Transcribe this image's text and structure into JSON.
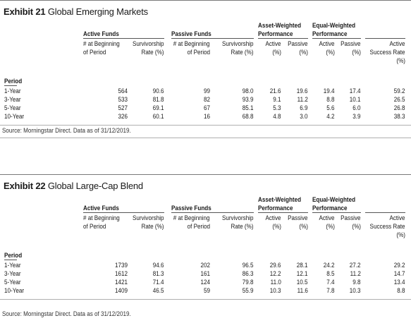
{
  "exhibits": [
    {
      "label": "Exhibit 21",
      "name": "Global Emerging Markets",
      "header": {
        "active_funds": "Active Funds",
        "passive_funds": "Passive Funds",
        "asset_weighted": "Asset-Weighted",
        "equal_weighted": "Equal-Weighted",
        "performance": "Performance",
        "active_count_1": "# at Beginning",
        "active_count_2": "of Period",
        "surv_1": "Survivorship",
        "surv_2": "Rate (%)",
        "passive_count_1": "# at Beginning",
        "passive_count_2": "of Period",
        "psurv_1": "Survivorship",
        "psurv_2": "Rate (%)",
        "aw_active": "Active",
        "aw_passive": "Passive",
        "aw_pct1": "(%)",
        "aw_pct2": "(%)",
        "ew_active": "Active",
        "ew_passive": "Passive",
        "ew_pct1": "(%)",
        "ew_pct2": "(%)",
        "succ_1": "Active",
        "succ_2": "Success Rate",
        "succ_3": "(%)"
      },
      "period_label": "Period",
      "rows": [
        {
          "period": "1-Year",
          "active_count": "564",
          "active_surv": "90.6",
          "passive_count": "99",
          "passive_surv": "98.0",
          "aw_active": "21.6",
          "aw_passive": "19.6",
          "ew_active": "19.4",
          "ew_passive": "17.4",
          "success": "59.2"
        },
        {
          "period": "3-Year",
          "active_count": "533",
          "active_surv": "81.8",
          "passive_count": "82",
          "passive_surv": "93.9",
          "aw_active": "9.1",
          "aw_passive": "11.2",
          "ew_active": "8.8",
          "ew_passive": "10.1",
          "success": "26.5"
        },
        {
          "period": "5-Year",
          "active_count": "527",
          "active_surv": "69.1",
          "passive_count": "67",
          "passive_surv": "85.1",
          "aw_active": "5.3",
          "aw_passive": "6.9",
          "ew_active": "5.6",
          "ew_passive": "6.0",
          "success": "26.8"
        },
        {
          "period": "10-Year",
          "active_count": "326",
          "active_surv": "60.1",
          "passive_count": "16",
          "passive_surv": "68.8",
          "aw_active": "4.8",
          "aw_passive": "3.0",
          "ew_active": "4.2",
          "ew_passive": "3.9",
          "success": "38.3"
        }
      ],
      "source": "Source: Morningstar Direct. Data as of 31/12/2019."
    },
    {
      "label": "Exhibit 22",
      "name": "Global Large-Cap Blend",
      "header": {
        "active_funds": "Active Funds",
        "passive_funds": "Passive Funds",
        "asset_weighted": "Asset-Weighted",
        "equal_weighted": "Equal-Weighted",
        "performance": "Performance",
        "active_count_1": "# at Beginning",
        "active_count_2": "of Period",
        "surv_1": "Survivorship",
        "surv_2": "Rate (%)",
        "passive_count_1": "# at Beginning",
        "passive_count_2": "of Period",
        "psurv_1": "Survivorship",
        "psurv_2": "Rate (%)",
        "aw_active": "Active",
        "aw_passive": "Passive",
        "aw_pct1": "(%)",
        "aw_pct2": "(%)",
        "ew_active": "Active",
        "ew_passive": "Passive",
        "ew_pct1": "(%)",
        "ew_pct2": "(%)",
        "succ_1": "Active",
        "succ_2": "Success Rate",
        "succ_3": "(%)"
      },
      "period_label": "Period",
      "rows": [
        {
          "period": "1-Year",
          "active_count": "1739",
          "active_surv": "94.6",
          "passive_count": "202",
          "passive_surv": "96.5",
          "aw_active": "29.6",
          "aw_passive": "28.1",
          "ew_active": "24.2",
          "ew_passive": "27.2",
          "success": "29.2"
        },
        {
          "period": "3-Year",
          "active_count": "1612",
          "active_surv": "81.3",
          "passive_count": "161",
          "passive_surv": "86.3",
          "aw_active": "12.2",
          "aw_passive": "12.1",
          "ew_active": "8.5",
          "ew_passive": "11.2",
          "success": "14.7"
        },
        {
          "period": "5-Year",
          "active_count": "1421",
          "active_surv": "71.4",
          "passive_count": "124",
          "passive_surv": "79.8",
          "aw_active": "11.0",
          "aw_passive": "10.5",
          "ew_active": "7.4",
          "ew_passive": "9.8",
          "success": "13.4"
        },
        {
          "period": "10-Year",
          "active_count": "1409",
          "active_surv": "46.5",
          "passive_count": "59",
          "passive_surv": "55.9",
          "aw_active": "10.3",
          "aw_passive": "11.6",
          "ew_active": "7.8",
          "ew_passive": "10.3",
          "success": "8.8"
        }
      ],
      "source": "Source: Morningstar Direct. Data as of 31/12/2019."
    }
  ]
}
